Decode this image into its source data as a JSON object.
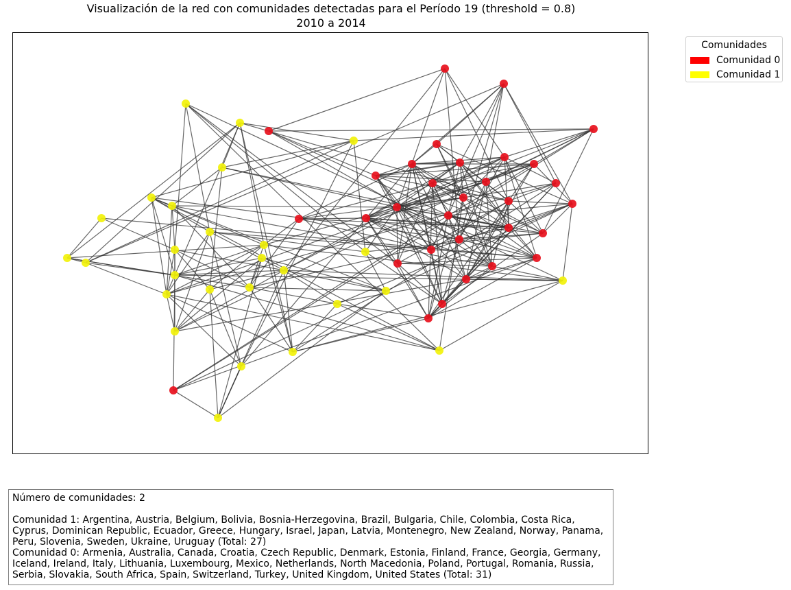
{
  "title": {
    "line1": "Visualización de la red con comunidades detectadas para el Período 19 (threshold = 0.8)",
    "line2": "2010 a 2014"
  },
  "legend": {
    "title": "Comunidades",
    "entries": [
      {
        "label": "Comunidad 0",
        "color": "#ff0000"
      },
      {
        "label": "Comunidad 1",
        "color": "#ffff00"
      }
    ]
  },
  "colors": {
    "community_0": "#e8101c",
    "community_1": "#f2f20a",
    "edge": "#333333"
  },
  "info": {
    "num_communities": "Número de comunidades: 2",
    "community_1": "Comunidad 1: Argentina, Austria, Belgium, Bolivia, Bosnia-Herzegovina, Brazil, Bulgaria, Chile, Colombia, Costa Rica, Cyprus, Dominican Republic, Ecuador, Greece, Hungary, Israel, Japan, Latvia, Montenegro, New Zealand, Norway, Panama, Peru, Slovenia, Sweden, Ukraine, Uruguay (Total: 27)",
    "community_0": "Comunidad 0: Armenia, Australia, Canada, Croatia, Czech Republic, Denmark, Estonia, Finland, France, Georgia, Germany, Iceland, Ireland, Italy, Lithuania, Luxembourg, Mexico, Netherlands, North Macedonia, Poland, Portugal, Romania, Russia, Serbia, Slovakia, South Africa, Spain, Switzerland, Turkey, United Kingdom, United States (Total: 31)"
  },
  "network": {
    "node_count": 58,
    "communities": {
      "community_0_size": 31,
      "community_1_size": 27
    }
  }
}
